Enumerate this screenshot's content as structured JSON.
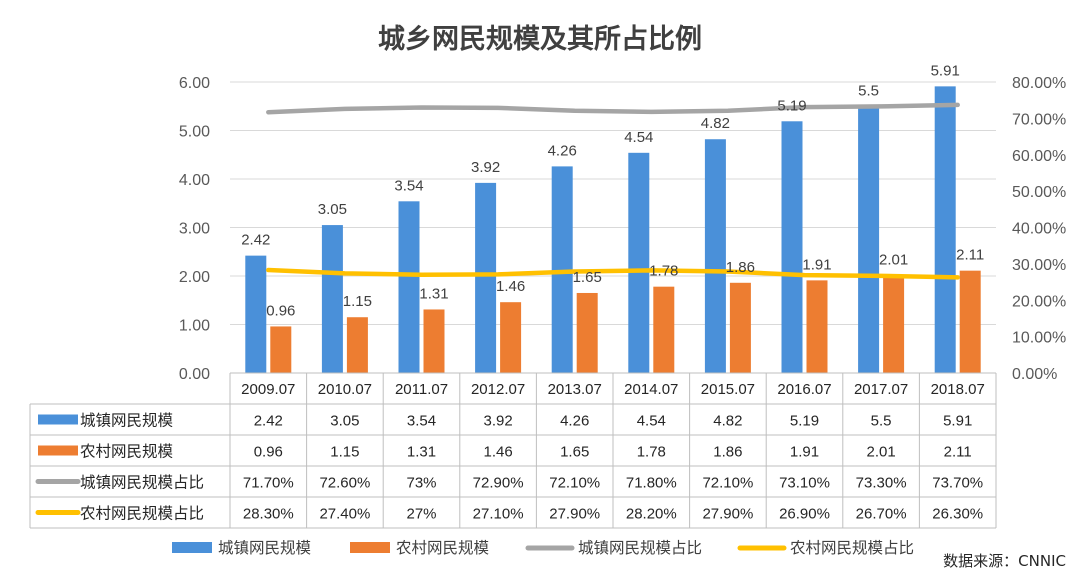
{
  "chart_data": {
    "type": "bar",
    "title": "城乡网民规模及其所占比例",
    "categories": [
      "2009.07",
      "2010.07",
      "2011.07",
      "2012.07",
      "2013.07",
      "2014.07",
      "2015.07",
      "2016.07",
      "2017.07",
      "2018.07"
    ],
    "y_left": {
      "min": 0,
      "max": 6,
      "step": 1,
      "tick_labels": [
        "0.00",
        "1.00",
        "2.00",
        "3.00",
        "4.00",
        "5.00",
        "6.00"
      ]
    },
    "y_right": {
      "min": 0,
      "max": 80,
      "step": 10,
      "tick_labels": [
        "0.00%",
        "10.00%",
        "20.00%",
        "30.00%",
        "40.00%",
        "50.00%",
        "60.00%",
        "70.00%",
        "80.00%"
      ]
    },
    "bar_series": [
      {
        "name": "城镇网民规模",
        "color": "#4a90d9",
        "values": [
          2.42,
          3.05,
          3.54,
          3.92,
          4.26,
          4.54,
          4.82,
          5.19,
          5.5,
          5.91
        ],
        "display": [
          "2.42",
          "3.05",
          "3.54",
          "3.92",
          "4.26",
          "4.54",
          "4.82",
          "5.19",
          "5.5",
          "5.91"
        ]
      },
      {
        "name": "农村网民规模",
        "color": "#ed7d31",
        "values": [
          0.96,
          1.15,
          1.31,
          1.46,
          1.65,
          1.78,
          1.86,
          1.91,
          2.01,
          2.11
        ],
        "display": [
          "0.96",
          "1.15",
          "1.31",
          "1.46",
          "1.65",
          "1.78",
          "1.86",
          "1.91",
          "2.01",
          "2.11"
        ]
      }
    ],
    "line_series": [
      {
        "name": "城镇网民规模占比",
        "color": "#a5a5a5",
        "axis": "right",
        "values": [
          71.7,
          72.6,
          73,
          72.9,
          72.1,
          71.8,
          72.1,
          73.1,
          73.3,
          73.7
        ],
        "display": [
          "71.70%",
          "72.60%",
          "73%",
          "72.90%",
          "72.10%",
          "71.80%",
          "72.10%",
          "73.10%",
          "73.30%",
          "73.70%"
        ]
      },
      {
        "name": "农村网民规模占比",
        "color": "#ffc000",
        "axis": "right",
        "values": [
          28.3,
          27.4,
          27,
          27.1,
          27.9,
          28.2,
          27.9,
          26.9,
          26.7,
          26.3
        ],
        "display": [
          "28.30%",
          "27.40%",
          "27%",
          "27.10%",
          "27.90%",
          "28.20%",
          "27.90%",
          "26.90%",
          "26.70%",
          "26.30%"
        ]
      }
    ],
    "legend_position": "bottom",
    "source": "数据来源：CNNIC"
  }
}
